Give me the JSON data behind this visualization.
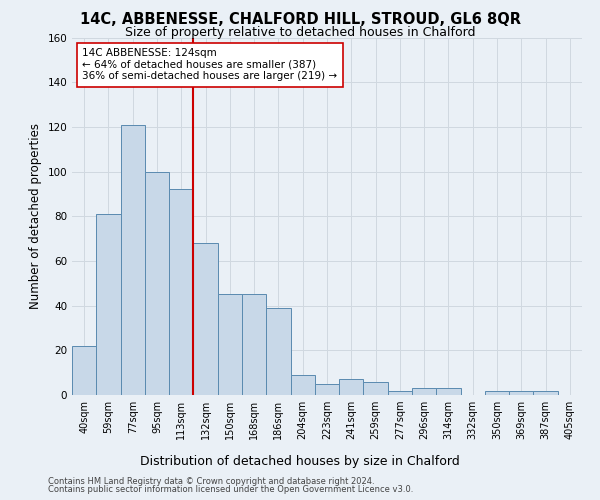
{
  "title": "14C, ABBENESSE, CHALFORD HILL, STROUD, GL6 8QR",
  "subtitle": "Size of property relative to detached houses in Chalford",
  "xlabel_bottom": "Distribution of detached houses by size in Chalford",
  "ylabel": "Number of detached properties",
  "footer_line1": "Contains HM Land Registry data © Crown copyright and database right 2024.",
  "footer_line2": "Contains public sector information licensed under the Open Government Licence v3.0.",
  "bar_labels": [
    "40sqm",
    "59sqm",
    "77sqm",
    "95sqm",
    "113sqm",
    "132sqm",
    "150sqm",
    "168sqm",
    "186sqm",
    "204sqm",
    "223sqm",
    "241sqm",
    "259sqm",
    "277sqm",
    "296sqm",
    "314sqm",
    "332sqm",
    "350sqm",
    "369sqm",
    "387sqm",
    "405sqm"
  ],
  "bar_values": [
    22,
    81,
    121,
    100,
    92,
    68,
    45,
    45,
    39,
    9,
    5,
    7,
    6,
    2,
    3,
    3,
    0,
    2,
    2,
    2,
    0
  ],
  "bar_color": "#c8d8e8",
  "bar_edge_color": "#5a8ab0",
  "vline_color": "#cc0000",
  "annotation_text": "14C ABBENESSE: 124sqm\n← 64% of detached houses are smaller (387)\n36% of semi-detached houses are larger (219) →",
  "annotation_box_color": "#ffffff",
  "annotation_box_edge": "#cc0000",
  "annotation_fontsize": 7.5,
  "ylim": [
    0,
    160
  ],
  "yticks": [
    0,
    20,
    40,
    60,
    80,
    100,
    120,
    140,
    160
  ],
  "grid_color": "#d0d8e0",
  "background_color": "#eaf0f6",
  "title_fontsize": 10.5,
  "subtitle_fontsize": 9,
  "ylabel_fontsize": 8.5,
  "tick_fontsize": 7,
  "xlabel_fontsize": 9,
  "footer_fontsize": 6
}
